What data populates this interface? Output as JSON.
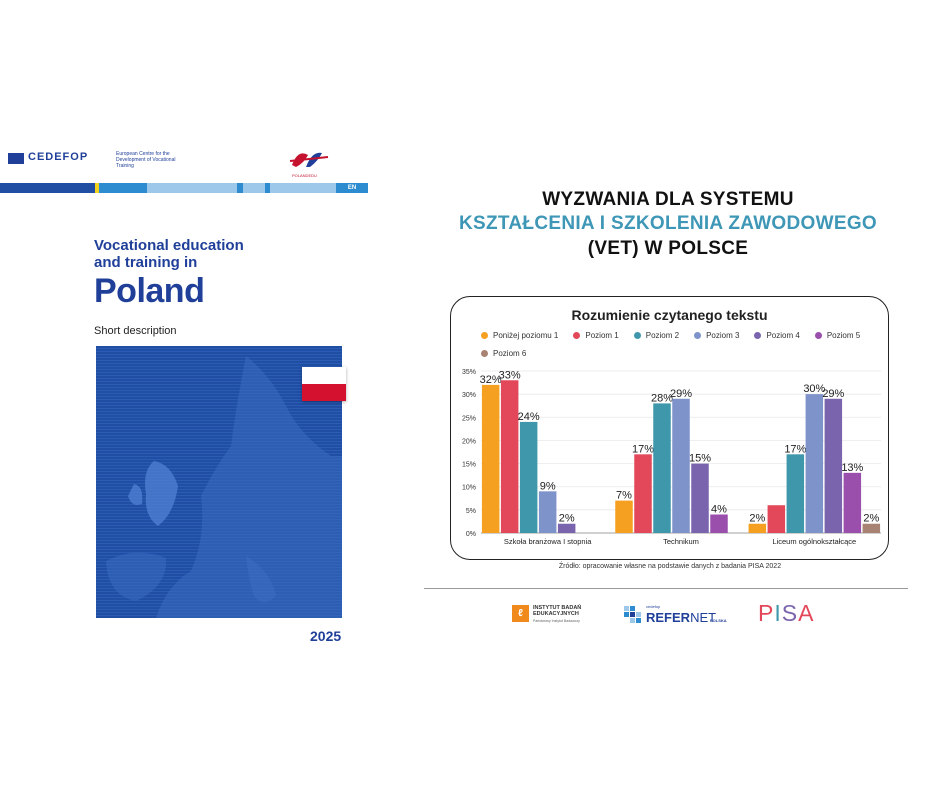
{
  "cover": {
    "publisher": "CEDEFOP",
    "publisher_desc": "European Centre for the Development of Vocational Training",
    "partner": "POLANDEDU",
    "lang": "EN",
    "title_line1": "Vocational education",
    "title_line2": "and training in",
    "country": "Poland",
    "subtitle": "Short description",
    "year": "2025"
  },
  "headline": {
    "line1": "WYZWANIA DLA SYSTEMU",
    "line2": "KSZTAŁCENIA I SZKOLENIA ZAWODOWEGO",
    "line3": "(VET) W POLSCE"
  },
  "colors": {
    "accent_teal": "#3e97b6",
    "cedefop_blue": "#1f3f99",
    "poland_red": "#d4112f"
  },
  "chart_data": {
    "type": "bar",
    "title": "Rozumienie czytanego tekstu",
    "categories": [
      "Szkoła branżowa I stopnia",
      "Technikum",
      "Liceum ogólnokształcące"
    ],
    "series": [
      {
        "name": "Poniżej poziomu 1",
        "color": "#f5a020",
        "values": [
          32,
          7,
          2
        ]
      },
      {
        "name": "Poziom 1",
        "color": "#e2485a",
        "values": [
          33,
          17,
          6
        ]
      },
      {
        "name": "Poziom 2",
        "color": "#3f97ab",
        "values": [
          24,
          28,
          17
        ]
      },
      {
        "name": "Poziom 3",
        "color": "#7e93c9",
        "values": [
          9,
          29,
          30
        ]
      },
      {
        "name": "Poziom 4",
        "color": "#7a64ad",
        "values": [
          2,
          15,
          29
        ]
      },
      {
        "name": "Poziom 5",
        "color": "#9b4fad",
        "values": [
          0,
          4,
          13
        ]
      },
      {
        "name": "Poziom 6",
        "color": "#a88272",
        "values": [
          0,
          0,
          2
        ]
      }
    ],
    "value_labels": [
      [
        "32%",
        "7%",
        "2%"
      ],
      [
        "33%",
        "17%",
        ""
      ],
      [
        "24%",
        "28%",
        "17%"
      ],
      [
        "9%",
        "29%",
        "30%"
      ],
      [
        "2%",
        "15%",
        "29%"
      ],
      [
        "",
        "4%",
        "13%"
      ],
      [
        "",
        "",
        "2%"
      ]
    ],
    "y_ticks": [
      "0%",
      "5%",
      "10%",
      "15%",
      "20%",
      "25%",
      "30%",
      "35%"
    ],
    "ylim": [
      0,
      35
    ],
    "legend": "top"
  },
  "source": "Źródło: opracowanie własne na podstawie danych z badania PISA 2022",
  "logos": {
    "ibe_line1": "INSTYTUT BADAŃ",
    "ibe_line2": "EDUKACYJNYCH",
    "ibe_sub": "Państwowy Instytut Badawczy",
    "refernet_small": "cedefop",
    "refernet_main1": "REFER",
    "refernet_main2": "NET",
    "refernet_country": "POLSKA",
    "pisa": "PISA"
  }
}
